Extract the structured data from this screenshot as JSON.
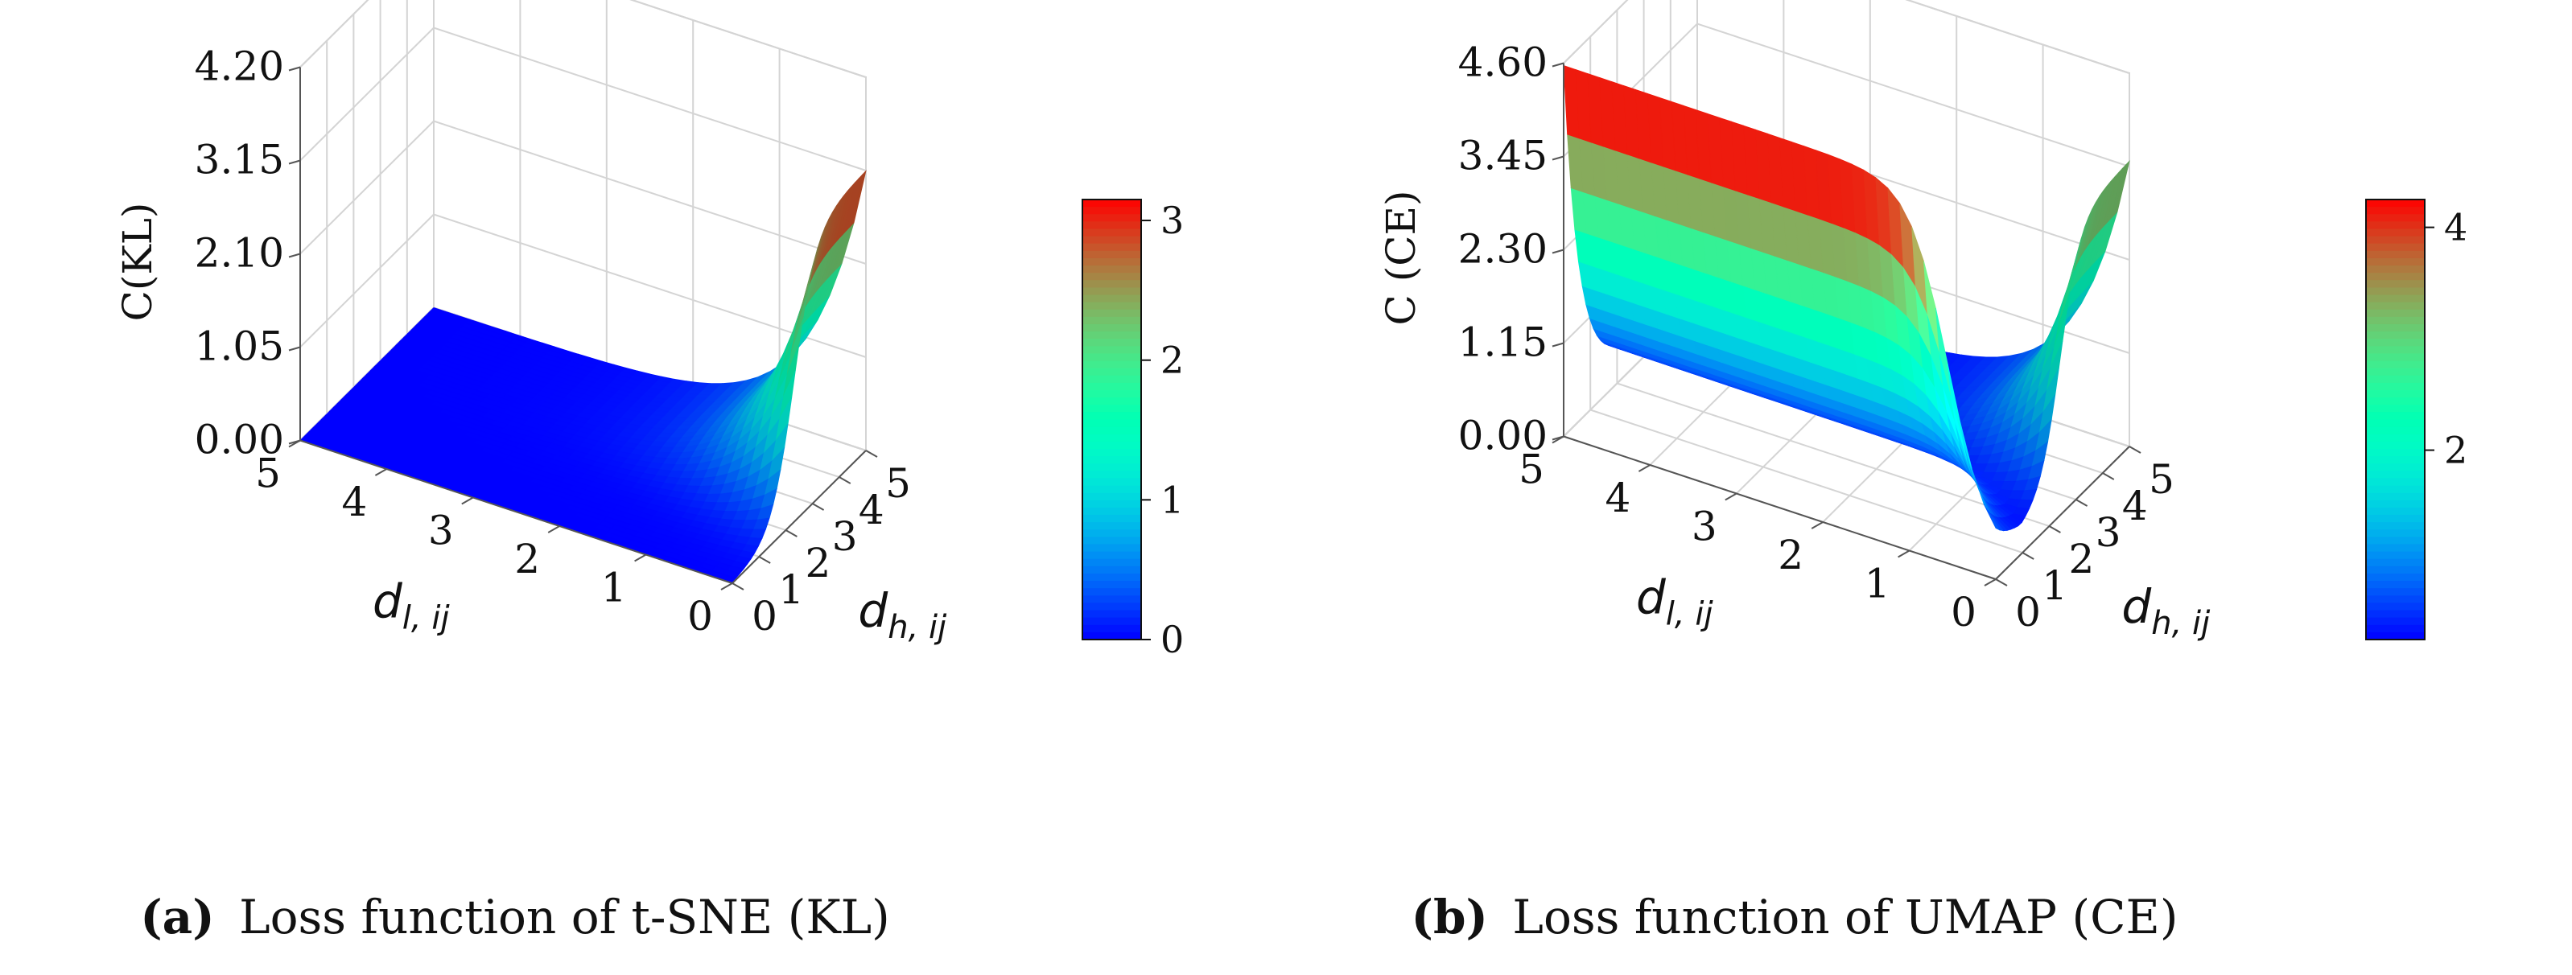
{
  "colors": {
    "colormap": "rainbow",
    "pane": "#f2f2f2",
    "grid": "#d4d4d4"
  },
  "chart_data": [
    {
      "type": "surface",
      "title": "Loss function of t-SNE (KL)",
      "caption_label": "(a)",
      "caption_text": "Loss function of t-SNE (KL)",
      "xlabel": "d_{l,ij}",
      "xlabel_base": "d",
      "xlabel_sub": "l, ij",
      "ylabel": "d_{h,ij}",
      "ylabel_base": "d",
      "ylabel_sub": "h, ij",
      "zlabel": "C(KL)",
      "x_range": [
        0,
        5
      ],
      "y_range": [
        0,
        5
      ],
      "zlim": [
        0,
        4.2
      ],
      "x_ticks": [
        "0",
        "1",
        "2",
        "3",
        "4",
        "5"
      ],
      "y_ticks": [
        "0",
        "1",
        "2",
        "3",
        "4",
        "5"
      ],
      "z_ticks": [
        "0.00",
        "1.05",
        "2.10",
        "3.15",
        "4.20"
      ],
      "z_tick_values": [
        0,
        1.05,
        2.1,
        3.15,
        4.2
      ],
      "function": "KL",
      "surface_max": 3.15,
      "colorbar": {
        "min": 0,
        "max": 3.15,
        "ticks": [
          "0",
          "1",
          "2",
          "3"
        ],
        "tick_values": [
          0,
          1,
          2,
          3
        ]
      }
    },
    {
      "type": "surface",
      "title": "Loss function of UMAP (CE)",
      "caption_label": "(b)",
      "caption_text": "Loss function of UMAP (CE)",
      "xlabel": "d_{l,ij}",
      "xlabel_base": "d",
      "xlabel_sub": "l, ij",
      "ylabel": "d_{h,ij}",
      "ylabel_base": "d",
      "ylabel_sub": "h, ij",
      "zlabel": "C (CE)",
      "x_range": [
        0,
        5
      ],
      "y_range": [
        0,
        5
      ],
      "zlim": [
        0,
        4.6
      ],
      "x_ticks": [
        "0",
        "1",
        "2",
        "3",
        "4",
        "5"
      ],
      "y_ticks": [
        "0",
        "1",
        "2",
        "3",
        "4",
        "5"
      ],
      "z_ticks": [
        "0.00",
        "1.15",
        "2.30",
        "3.45",
        "4.60"
      ],
      "z_tick_values": [
        0,
        1.15,
        2.3,
        3.45,
        4.6
      ],
      "function": "CE",
      "surface_max": 4.25,
      "colorbar": {
        "min": 0.3,
        "max": 4.25,
        "ticks": [
          "2",
          "4"
        ],
        "tick_values": [
          2,
          4
        ]
      }
    }
  ]
}
